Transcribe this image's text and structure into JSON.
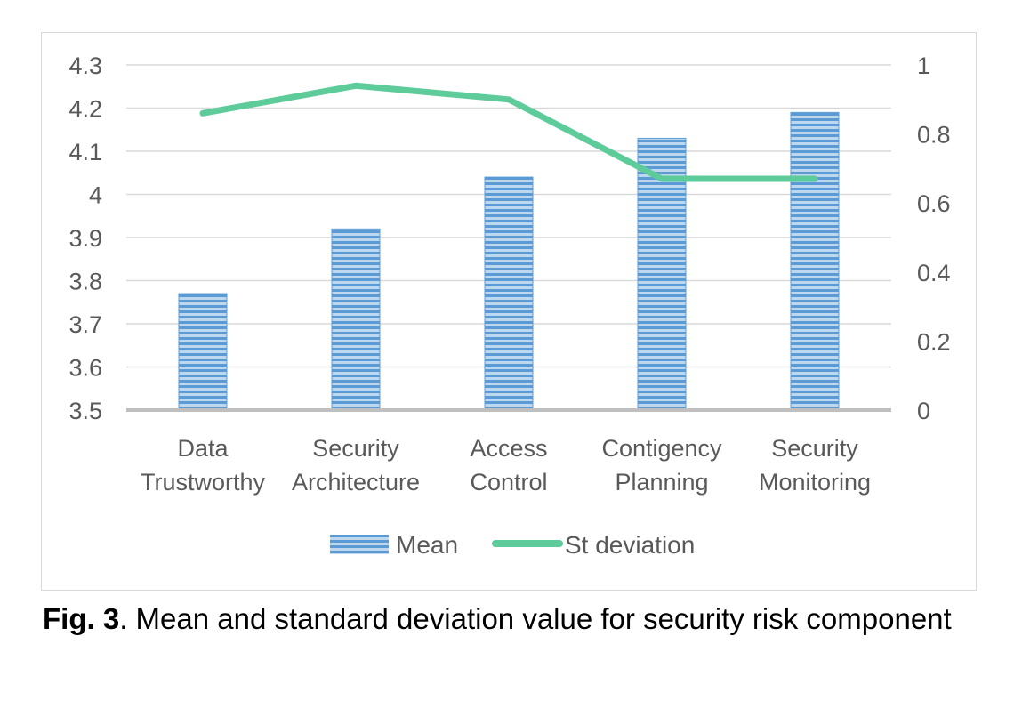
{
  "chart_data": {
    "type": "bar+line",
    "categories": [
      [
        "Data",
        "Trustworthy"
      ],
      [
        "Security",
        "Architecture"
      ],
      [
        "Access",
        "Control"
      ],
      [
        "Contigency",
        "Planning"
      ],
      [
        "Security",
        "Monitoring"
      ]
    ],
    "series": [
      {
        "name": "Mean",
        "type": "bar",
        "axis": "left",
        "values": [
          3.77,
          3.92,
          4.04,
          4.13,
          4.19
        ]
      },
      {
        "name": "St deviation",
        "type": "line",
        "axis": "right",
        "values": [
          0.86,
          0.94,
          0.9,
          0.67,
          0.67
        ]
      }
    ],
    "left_axis": {
      "ylim": [
        3.5,
        4.3
      ],
      "ticks": [
        "3.5",
        "3.6",
        "3.7",
        "3.8",
        "3.9",
        "4",
        "4.1",
        "4.2",
        "4.3"
      ]
    },
    "right_axis": {
      "ylim": [
        0,
        1
      ],
      "ticks": [
        "0",
        "0.2",
        "0.4",
        "0.6",
        "0.8",
        "1"
      ]
    },
    "grid": true,
    "legend_position": "bottom",
    "colors": {
      "bar": "#5b9bd5",
      "bar_stripe": "#bdd7ee",
      "line": "#5ecb9a",
      "grid": "#d9d9d9",
      "axis": "#bfbfbf",
      "text": "#595959"
    }
  },
  "caption": {
    "label": "Fig. 3",
    "text": ". Mean and standard deviation value for security risk component"
  }
}
